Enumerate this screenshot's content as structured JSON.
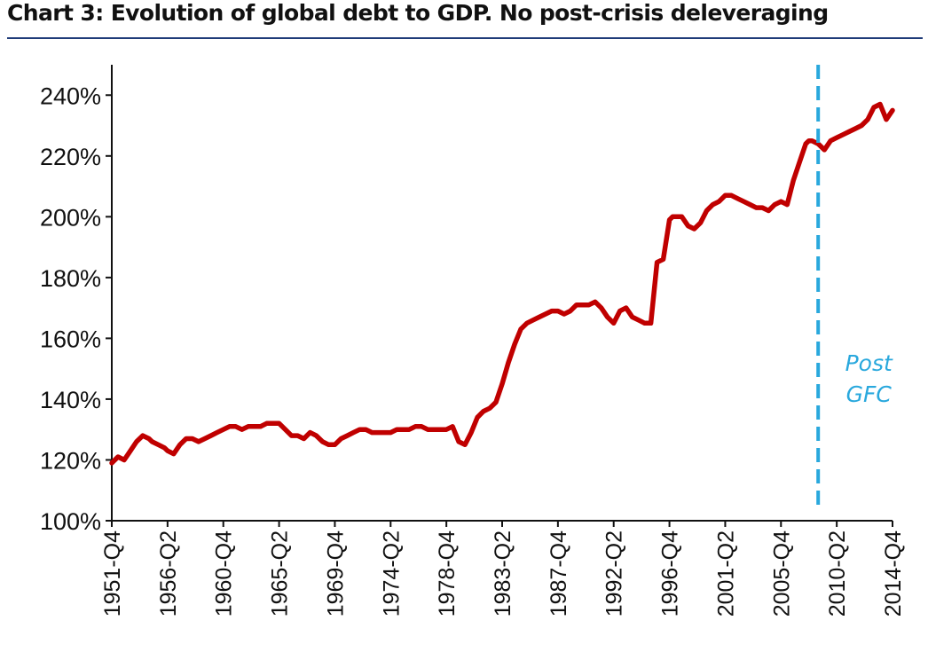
{
  "chart_data": {
    "type": "line",
    "title": "Chart 3: Evolution of global debt to GDP. No post-crisis deleveraging",
    "xlabel": "",
    "ylabel": "",
    "ylim": [
      100,
      250
    ],
    "yticks": [
      100,
      120,
      140,
      160,
      180,
      200,
      220,
      240
    ],
    "ytick_labels": [
      "100%",
      "120%",
      "140%",
      "160%",
      "180%",
      "200%",
      "220%",
      "240%"
    ],
    "xlim": [
      1951.75,
      2014.75
    ],
    "xticks": [
      1951.75,
      1956.25,
      1960.75,
      1965.25,
      1969.75,
      1974.25,
      1978.75,
      1983.25,
      1987.75,
      1992.25,
      1996.75,
      2001.25,
      2005.75,
      2010.25,
      2014.75
    ],
    "xtick_labels": [
      "1951-Q4",
      "1956-Q2",
      "1960-Q4",
      "1965-Q2",
      "1969-Q4",
      "1974-Q2",
      "1978-Q4",
      "1983-Q2",
      "1987-Q4",
      "1992-Q2",
      "1996-Q4",
      "2001-Q2",
      "2005-Q4",
      "2010-Q2",
      "2014-Q4"
    ],
    "grid": false,
    "colors": {
      "line": "#c00000",
      "marker": "#29a8dd",
      "axis": "#111111",
      "title_rule": "#1f3b78"
    },
    "series": [
      {
        "x": [
          1951.75,
          1952.25,
          1952.75,
          1953.25,
          1953.75,
          1954.25,
          1954.75,
          1955.0,
          1955.5,
          1956.0,
          1956.25,
          1956.75,
          1957.25,
          1957.75,
          1958.25,
          1958.75,
          1959.25,
          1959.75,
          1960.25,
          1960.75,
          1961.25,
          1961.75,
          1962.25,
          1962.75,
          1963.25,
          1963.75,
          1964.25,
          1964.75,
          1965.25,
          1965.75,
          1966.25,
          1966.75,
          1967.25,
          1967.75,
          1968.25,
          1968.75,
          1969.25,
          1969.75,
          1970.25,
          1970.75,
          1971.25,
          1971.75,
          1972.25,
          1972.75,
          1973.25,
          1973.75,
          1974.25,
          1974.75,
          1975.25,
          1975.75,
          1976.25,
          1976.75,
          1977.25,
          1977.75,
          1978.25,
          1978.75,
          1979.25,
          1979.75,
          1980.25,
          1980.75,
          1981.25,
          1981.75,
          1982.25,
          1982.75,
          1983.25,
          1983.75,
          1984.25,
          1984.75,
          1985.25,
          1985.75,
          1986.25,
          1986.75,
          1987.25,
          1987.75,
          1988.25,
          1988.75,
          1989.25,
          1989.75,
          1990.25,
          1990.75,
          1991.25,
          1991.75,
          1992.25,
          1992.75,
          1993.25,
          1993.75,
          1994.25,
          1994.75,
          1995.25,
          1995.75,
          1996.25,
          1996.75,
          1997.0,
          1997.25,
          1997.75,
          1998.25,
          1998.75,
          1999.25,
          1999.75,
          2000.25,
          2000.75,
          2001.25,
          2001.75,
          2002.25,
          2002.75,
          2003.25,
          2003.75,
          2004.25,
          2004.75,
          2005.25,
          2005.75,
          2006.25,
          2006.75,
          2007.25,
          2007.75,
          2008.0,
          2008.25,
          2008.75,
          2009.25,
          2009.75,
          2010.25,
          2010.75,
          2011.25,
          2011.75,
          2012.25,
          2012.75,
          2013.25,
          2013.75,
          2014.25,
          2014.75
        ],
        "values": [
          119,
          121,
          120,
          123,
          126,
          128,
          127,
          126,
          125,
          124,
          123,
          122,
          125,
          127,
          127,
          126,
          127,
          128,
          129,
          130,
          131,
          131,
          130,
          131,
          131,
          131,
          132,
          132,
          132,
          130,
          128,
          128,
          127,
          129,
          128,
          126,
          125,
          125,
          127,
          128,
          129,
          130,
          130,
          129,
          129,
          129,
          129,
          130,
          130,
          130,
          131,
          131,
          130,
          130,
          130,
          130,
          131,
          126,
          125,
          129,
          134,
          136,
          137,
          139,
          145,
          152,
          158,
          163,
          165,
          166,
          167,
          168,
          169,
          169,
          168,
          169,
          171,
          171,
          171,
          172,
          170,
          167,
          165,
          169,
          170,
          167,
          166,
          165,
          165,
          185,
          186,
          199,
          200,
          200,
          200,
          197,
          196,
          198,
          202,
          204,
          205,
          207,
          207,
          206,
          205,
          204,
          203,
          203,
          202,
          204,
          205,
          204,
          212,
          218,
          224,
          225,
          225,
          224,
          222,
          225,
          226,
          227,
          228,
          229,
          230,
          232,
          236,
          237,
          232,
          235
        ]
      }
    ],
    "annotations": [
      {
        "label_lines": [
          "Post",
          "GFC"
        ],
        "x": 2008.75,
        "style": "dashed-vertical"
      }
    ]
  }
}
